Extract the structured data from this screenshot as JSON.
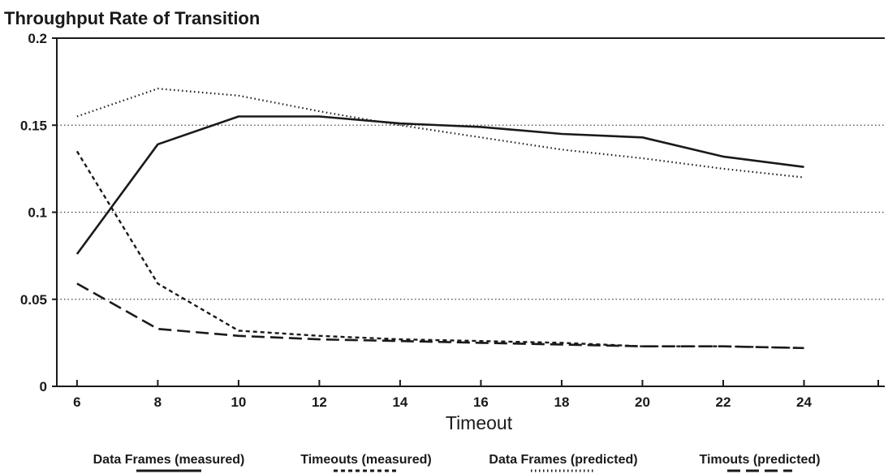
{
  "chart_data": {
    "type": "line",
    "title": "Throughput Rate of Transition",
    "xlabel": "Timeout",
    "ylabel": "",
    "x_ticks": [
      "6",
      "8",
      "10",
      "12",
      "14",
      "16",
      "18",
      "20",
      "22",
      "24"
    ],
    "y_ticks": [
      "0",
      "0.05",
      "0.1",
      "0.15",
      "0.2"
    ],
    "xlim": [
      5.5,
      26
    ],
    "ylim": [
      0,
      0.2
    ],
    "grid": "horizontal dotted lines at y ticks",
    "legend_position": "bottom",
    "series": [
      {
        "name": "Data Frames (measured)",
        "style": "solid",
        "x": [
          6,
          8,
          10,
          12,
          14,
          16,
          18,
          20,
          22,
          24
        ],
        "y": [
          0.076,
          0.139,
          0.155,
          0.155,
          0.151,
          0.149,
          0.145,
          0.143,
          0.132,
          0.126
        ]
      },
      {
        "name": "Timeouts (measured)",
        "style": "short-dash",
        "x": [
          6,
          8,
          10,
          12,
          14,
          16,
          18,
          20,
          22,
          24
        ],
        "y": [
          0.135,
          0.059,
          0.032,
          0.029,
          0.027,
          0.026,
          0.025,
          0.023,
          0.023,
          0.022
        ]
      },
      {
        "name": "Data Frames (predicted)",
        "style": "dotted",
        "x": [
          6,
          8,
          10,
          12,
          14,
          16,
          18,
          20,
          22,
          24
        ],
        "y": [
          0.155,
          0.171,
          0.167,
          0.158,
          0.15,
          0.143,
          0.136,
          0.131,
          0.125,
          0.12
        ]
      },
      {
        "name": "Timouts (predicted)",
        "style": "long-dash",
        "x": [
          6,
          8,
          10,
          12,
          14,
          16,
          18,
          20,
          22,
          24
        ],
        "y": [
          0.059,
          0.033,
          0.029,
          0.027,
          0.026,
          0.025,
          0.024,
          0.023,
          0.023,
          0.022
        ]
      }
    ]
  }
}
